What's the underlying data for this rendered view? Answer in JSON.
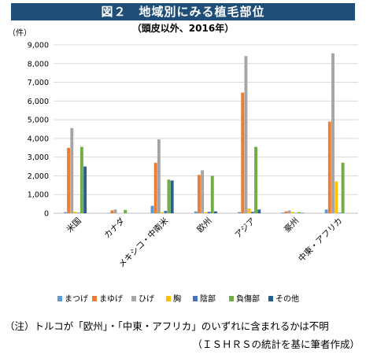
{
  "title": "図２　地域別にみる植毛部位",
  "subtitle": "（頭皮以外、2016年）",
  "notes": {
    "line1": "（注）トルコが「欧州」・「中東・アフリカ」のいずれに含まれるかは不明",
    "line2": "（ＩＳＨＲＳの統計を基に筆者作成）"
  },
  "chart_data": {
    "type": "bar",
    "y_unit": "（件）",
    "ylim": [
      0,
      9000
    ],
    "yticks": [
      0,
      1000,
      2000,
      3000,
      4000,
      5000,
      6000,
      7000,
      8000,
      9000
    ],
    "ytick_labels": [
      "0",
      "1,000",
      "2,000",
      "3,000",
      "4,000",
      "5,000",
      "6,000",
      "7,000",
      "8,000",
      "9,000"
    ],
    "grid": true,
    "legend_position": "bottom",
    "categories": [
      "米国",
      "カナダ",
      "メキシコ・中南米",
      "欧州",
      "アジア",
      "豪州",
      "中東・アフリカ"
    ],
    "series": [
      {
        "name": "まつげ",
        "color": "#5b9bd5",
        "values": [
          60,
          20,
          400,
          100,
          60,
          40,
          200
        ]
      },
      {
        "name": "まゆげ",
        "color": "#ed7d31",
        "values": [
          3500,
          150,
          2700,
          2050,
          6450,
          100,
          4900
        ]
      },
      {
        "name": "ひげ",
        "color": "#a5a5a5",
        "values": [
          4550,
          200,
          3950,
          2300,
          8400,
          150,
          8550
        ]
      },
      {
        "name": "胸",
        "color": "#ffc000",
        "values": [
          80,
          0,
          60,
          60,
          250,
          70,
          1700
        ]
      },
      {
        "name": "陰部",
        "color": "#4472c4",
        "values": [
          30,
          0,
          130,
          80,
          80,
          20,
          30
        ]
      },
      {
        "name": "負傷部",
        "color": "#70ad47",
        "values": [
          3550,
          180,
          1800,
          2000,
          3550,
          60,
          2700
        ]
      },
      {
        "name": "その他",
        "color": "#255e91",
        "values": [
          2500,
          0,
          1750,
          100,
          200,
          20,
          0
        ]
      }
    ]
  }
}
